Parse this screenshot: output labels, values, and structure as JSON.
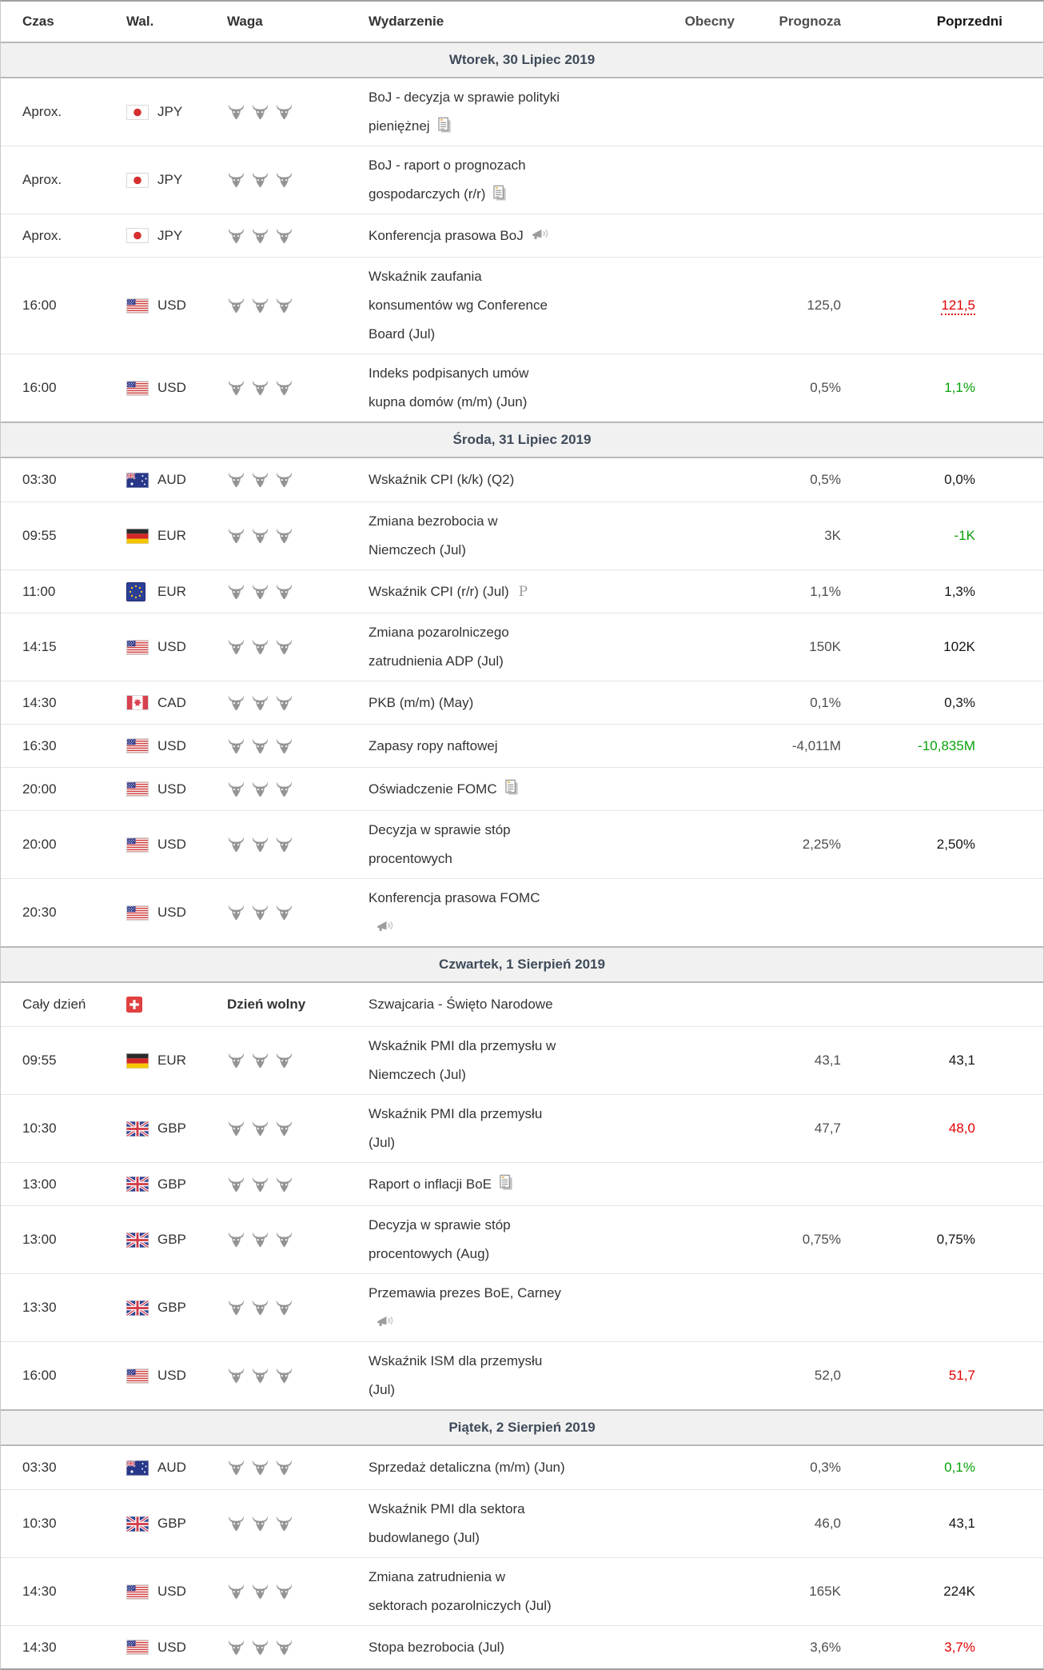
{
  "columns": {
    "time": "Czas",
    "currency": "Wal.",
    "importance": "Waga",
    "event": "Wydarzenie",
    "actual": "Obecny",
    "forecast": "Prognoza",
    "previous": "Poprzedni"
  },
  "colors": {
    "positive": "#0aa10a",
    "negative": "#e10000",
    "text": "#333333",
    "date_text": "#3f4b5a",
    "date_bg": "#f1f1f1",
    "bull": "#949494"
  },
  "sections": [
    {
      "date": "Wtorek, 30 Lipiec 2019",
      "rows": [
        {
          "time": "Aprox.",
          "flag": "jp",
          "currency": "JPY",
          "importance": 3,
          "event": "BoJ - decyzja w sprawie polityki\npieniężnej",
          "event_icon": "report"
        },
        {
          "time": "Aprox.",
          "flag": "jp",
          "currency": "JPY",
          "importance": 3,
          "event": "BoJ - raport o prognozach\ngospodarczych (r/r)",
          "event_icon": "report"
        },
        {
          "time": "Aprox.",
          "flag": "jp",
          "currency": "JPY",
          "importance": 3,
          "event": "Konferencja prasowa BoJ",
          "event_icon": "speech"
        },
        {
          "time": "16:00",
          "flag": "us",
          "currency": "USD",
          "importance": 3,
          "event": "Wskaźnik zaufania\nkonsumentów wg Conference\nBoard (Jul)",
          "forecast": "125,0",
          "previous": "121,5",
          "previous_color": "red",
          "previous_revised": true
        },
        {
          "time": "16:00",
          "flag": "us",
          "currency": "USD",
          "importance": 3,
          "event": "Indeks podpisanych umów\nkupna domów (m/m) (Jun)",
          "forecast": "0,5%",
          "previous": "1,1%",
          "previous_color": "green"
        }
      ]
    },
    {
      "date": "Środa, 31 Lipiec 2019",
      "rows": [
        {
          "time": "03:30",
          "flag": "au",
          "currency": "AUD",
          "importance": 3,
          "event": "Wskaźnik CPI (k/k) (Q2)",
          "forecast": "0,5%",
          "previous": "0,0%"
        },
        {
          "time": "09:55",
          "flag": "de",
          "currency": "EUR",
          "importance": 3,
          "event": "Zmiana bezrobocia w\nNiemczech (Jul)",
          "forecast": "3K",
          "previous": "-1K",
          "previous_color": "green"
        },
        {
          "time": "11:00",
          "flag": "eu",
          "currency": "EUR",
          "importance": 3,
          "event": "Wskaźnik CPI (r/r) (Jul)",
          "event_icon": "preliminary",
          "forecast": "1,1%",
          "previous": "1,3%"
        },
        {
          "time": "14:15",
          "flag": "us",
          "currency": "USD",
          "importance": 3,
          "event": "Zmiana pozarolniczego\nzatrudnienia ADP (Jul)",
          "forecast": "150K",
          "previous": "102K"
        },
        {
          "time": "14:30",
          "flag": "ca",
          "currency": "CAD",
          "importance": 3,
          "event": "PKB (m/m) (May)",
          "forecast": "0,1%",
          "previous": "0,3%"
        },
        {
          "time": "16:30",
          "flag": "us",
          "currency": "USD",
          "importance": 3,
          "event": "Zapasy ropy naftowej",
          "forecast": "-4,011M",
          "previous": "-10,835M",
          "previous_color": "green"
        },
        {
          "time": "20:00",
          "flag": "us",
          "currency": "USD",
          "importance": 3,
          "event": "Oświadczenie FOMC",
          "event_icon": "report"
        },
        {
          "time": "20:00",
          "flag": "us",
          "currency": "USD",
          "importance": 3,
          "event": "Decyzja w sprawie stóp\nprocentowych",
          "forecast": "2,25%",
          "previous": "2,50%"
        },
        {
          "time": "20:30",
          "flag": "us",
          "currency": "USD",
          "importance": 3,
          "event": "Konferencja prasowa FOMC\n",
          "event_icon": "speech"
        }
      ]
    },
    {
      "date": "Czwartek, 1 Sierpień 2019",
      "rows": [
        {
          "time": "Cały dzień",
          "flag": "ch",
          "currency": "",
          "holiday": "Dzień wolny",
          "event": "Szwajcaria - Święto Narodowe"
        },
        {
          "time": "09:55",
          "flag": "de",
          "currency": "EUR",
          "importance": 3,
          "event": "Wskaźnik PMI dla przemysłu w\nNiemczech (Jul)",
          "forecast": "43,1",
          "previous": "43,1"
        },
        {
          "time": "10:30",
          "flag": "gb",
          "currency": "GBP",
          "importance": 3,
          "event": "Wskaźnik PMI dla przemysłu\n(Jul)",
          "forecast": "47,7",
          "previous": "48,0",
          "previous_color": "red"
        },
        {
          "time": "13:00",
          "flag": "gb",
          "currency": "GBP",
          "importance": 3,
          "event": "Raport o inflacji BoE",
          "event_icon": "report"
        },
        {
          "time": "13:00",
          "flag": "gb",
          "currency": "GBP",
          "importance": 3,
          "event": "Decyzja w sprawie stóp\nprocentowych (Aug)",
          "forecast": "0,75%",
          "previous": "0,75%"
        },
        {
          "time": "13:30",
          "flag": "gb",
          "currency": "GBP",
          "importance": 3,
          "event": "Przemawia prezes BoE, Carney\n",
          "event_icon": "speech"
        },
        {
          "time": "16:00",
          "flag": "us",
          "currency": "USD",
          "importance": 3,
          "event": "Wskaźnik ISM dla przemysłu\n(Jul)",
          "forecast": "52,0",
          "previous": "51,7",
          "previous_color": "red"
        }
      ]
    },
    {
      "date": "Piątek, 2 Sierpień 2019",
      "rows": [
        {
          "time": "03:30",
          "flag": "au",
          "currency": "AUD",
          "importance": 3,
          "event": "Sprzedaż detaliczna (m/m) (Jun)",
          "forecast": "0,3%",
          "previous": "0,1%",
          "previous_color": "green"
        },
        {
          "time": "10:30",
          "flag": "gb",
          "currency": "GBP",
          "importance": 3,
          "event": "Wskaźnik PMI dla sektora\nbudowlanego (Jul)",
          "forecast": "46,0",
          "previous": "43,1"
        },
        {
          "time": "14:30",
          "flag": "us",
          "currency": "USD",
          "importance": 3,
          "event": "Zmiana zatrudnienia w\nsektorach pozarolniczych (Jul)",
          "forecast": "165K",
          "previous": "224K"
        },
        {
          "time": "14:30",
          "flag": "us",
          "currency": "USD",
          "importance": 3,
          "event": "Stopa bezrobocia (Jul)",
          "forecast": "3,6%",
          "previous": "3,7%",
          "previous_color": "red"
        }
      ]
    }
  ]
}
